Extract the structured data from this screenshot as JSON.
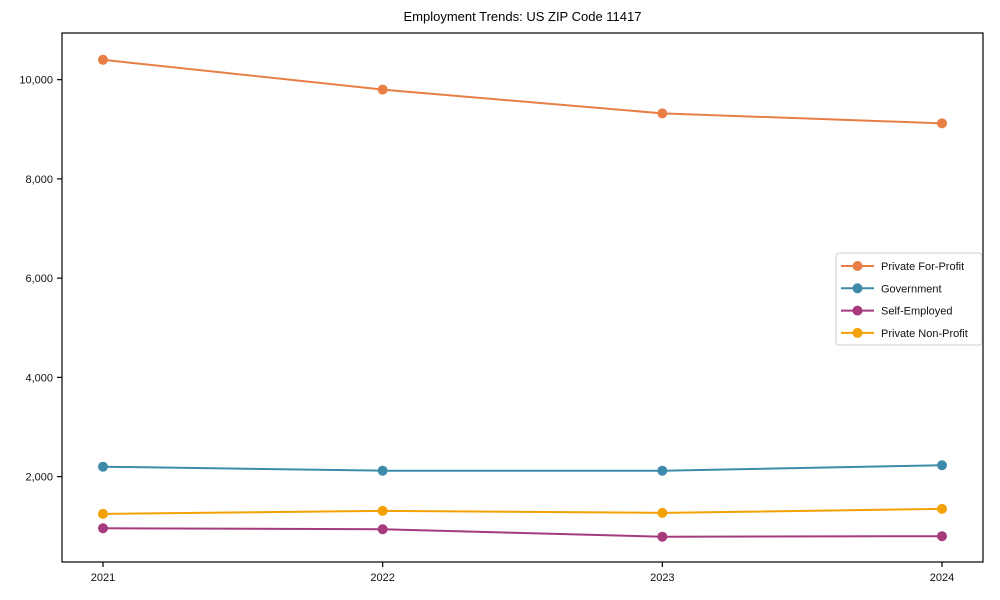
{
  "chart_data": {
    "type": "line",
    "title": "Employment Trends: US ZIP Code 11417",
    "categories": [
      "2021",
      "2022",
      "2023",
      "2024"
    ],
    "series": [
      {
        "name": "Private For-Profit",
        "color": "#e87e45",
        "values": [
          10400,
          9800,
          9320,
          9120
        ]
      },
      {
        "name": "Government",
        "color": "#3d8ba9",
        "values": [
          2200,
          2120,
          2120,
          2230
        ]
      },
      {
        "name": "Self-Employed",
        "color": "#a53a7d",
        "values": [
          960,
          940,
          790,
          800
        ]
      },
      {
        "name": "Private Non-Profit",
        "color": "#f3a104",
        "values": [
          1250,
          1310,
          1270,
          1350
        ]
      }
    ],
    "xlabel": "",
    "ylabel": "",
    "ylim": [
      280,
      10940
    ],
    "yticks": [
      2000,
      4000,
      6000,
      8000,
      10000
    ],
    "ytick_labels": [
      "2,000",
      "4,000",
      "6,000",
      "8,000",
      "10,000"
    ],
    "grid": false,
    "marker": "circle",
    "legend": {
      "position": "center-right",
      "entries": [
        "Private For-Profit",
        "Government",
        "Self-Employed",
        "Private Non-Profit"
      ]
    },
    "frame_color": "#000000",
    "legend_border_color": "#cccccc"
  }
}
